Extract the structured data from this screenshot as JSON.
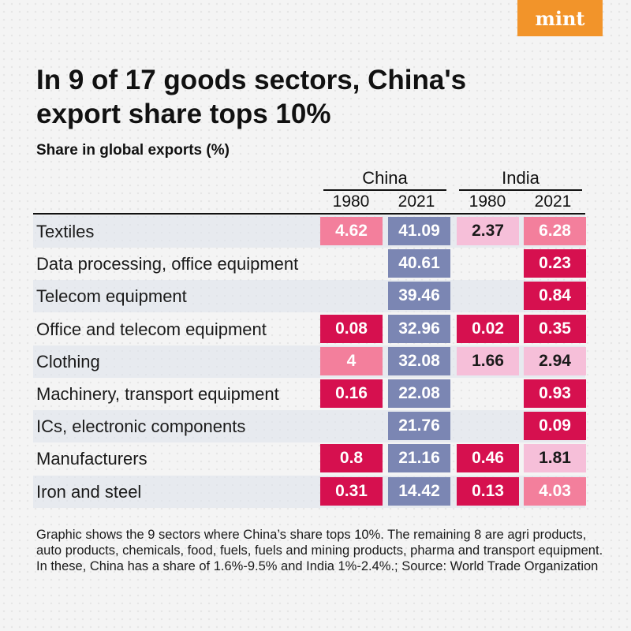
{
  "brand": "mint",
  "title": "In 9 of 17 goods sectors, China's export share tops 10%",
  "subtitle": "Share in global exports (%)",
  "footnote": "Graphic shows the 9 sectors where China’s share tops 10%. The remaining 8 are agri products, auto products, chemicals, food, fuels, fuels and mining products, pharma and transport equipment. In these, China has a share of 1.6%-9.5% and India 1%-2.4%.; Source: World Trade Organization",
  "colors": {
    "high_red": "#d6104f",
    "mid_pink": "#f37f9c",
    "light_pink": "#f6bfd9",
    "blue": "#7b86b3",
    "dark_text": "#1a1a1a",
    "white_text": "#ffffff"
  },
  "chart_data": {
    "type": "table",
    "title": "In 9 of 17 goods sectors, China's export share tops 10%",
    "subtitle": "Share in global exports (%)",
    "groups": [
      "China",
      "India"
    ],
    "years": [
      "1980",
      "2021"
    ],
    "columns": [
      {
        "group": "China",
        "year": "1980"
      },
      {
        "group": "China",
        "year": "2021"
      },
      {
        "group": "India",
        "year": "1980"
      },
      {
        "group": "India",
        "year": "2021"
      }
    ],
    "rows": [
      {
        "label": "Textiles",
        "values": [
          "4.62",
          "41.09",
          "2.37",
          "6.28"
        ],
        "styles": [
          "mid",
          "blue",
          "light",
          "mid"
        ]
      },
      {
        "label": "Data processing, office equipment",
        "values": [
          "",
          "40.61",
          "",
          "0.23"
        ],
        "styles": [
          "",
          "blue",
          "",
          "red"
        ]
      },
      {
        "label": "Telecom equipment",
        "values": [
          "",
          "39.46",
          "",
          "0.84"
        ],
        "styles": [
          "",
          "blue",
          "",
          "red"
        ]
      },
      {
        "label": "Office and telecom equipment",
        "values": [
          "0.08",
          "32.96",
          "0.02",
          "0.35"
        ],
        "styles": [
          "red",
          "blue",
          "red",
          "red"
        ]
      },
      {
        "label": "Clothing",
        "values": [
          "4",
          "32.08",
          "1.66",
          "2.94"
        ],
        "styles": [
          "mid",
          "blue",
          "light",
          "light"
        ]
      },
      {
        "label": "Machinery, transport equipment",
        "values": [
          "0.16",
          "22.08",
          "",
          "0.93"
        ],
        "styles": [
          "red",
          "blue",
          "",
          "red"
        ]
      },
      {
        "label": "ICs, electronic components",
        "values": [
          "",
          "21.76",
          "",
          "0.09"
        ],
        "styles": [
          "",
          "blue",
          "",
          "red"
        ]
      },
      {
        "label": "Manufacturers",
        "values": [
          "0.8",
          "21.16",
          "0.46",
          "1.81"
        ],
        "styles": [
          "red",
          "blue",
          "red",
          "light"
        ]
      },
      {
        "label": "Iron and steel",
        "values": [
          "0.31",
          "14.42",
          "0.13",
          "4.03"
        ],
        "styles": [
          "red",
          "blue",
          "red",
          "mid"
        ]
      }
    ]
  }
}
